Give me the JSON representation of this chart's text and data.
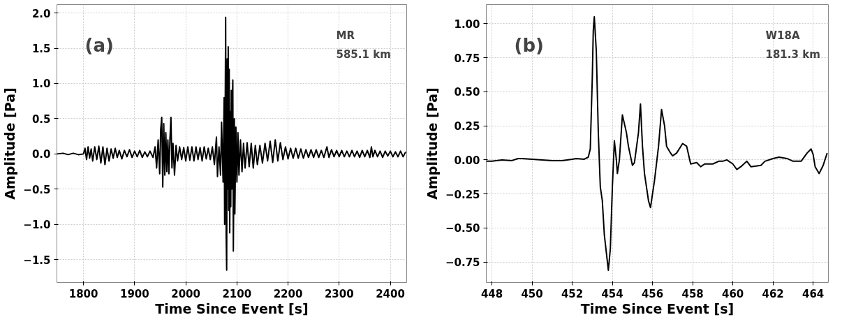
{
  "chart_data": [
    {
      "type": "line",
      "xlabel": "Time Since Event [s]",
      "ylabel": "Amplitude [Pa]",
      "annotations": [
        "(a)",
        "MR",
        "585.1 km"
      ],
      "grid": true,
      "xlim": [
        1748,
        2432
      ],
      "ylim": [
        -1.825,
        2.12
      ],
      "xticks": [
        1800,
        1900,
        2000,
        2100,
        2200,
        2300,
        2400
      ],
      "yticks": [
        {
          "value": -1.5,
          "label": "−1.5"
        },
        {
          "value": -1.0,
          "label": "−1.0"
        },
        {
          "value": -0.5,
          "label": "−0.5"
        },
        {
          "value": 0,
          "label": "0.0"
        },
        0.5,
        {
          "value": 1,
          "label": "1.0"
        },
        1.5,
        {
          "value": 2,
          "label": "2.0"
        }
      ],
      "series": [
        {
          "color": "#000000",
          "x": [
            1748,
            1760,
            1770,
            1780,
            1790,
            1800,
            1803,
            1806,
            1809,
            1812,
            1815,
            1818,
            1822,
            1826,
            1830,
            1834,
            1838,
            1842,
            1846,
            1850,
            1854,
            1858,
            1862,
            1866,
            1870,
            1875,
            1880,
            1885,
            1890,
            1895,
            1900,
            1905,
            1910,
            1915,
            1920,
            1925,
            1930,
            1936,
            1940,
            1943,
            1946,
            1949,
            1951,
            1953,
            1955,
            1957,
            1959,
            1961,
            1963,
            1965,
            1967,
            1969,
            1971,
            1973,
            1975,
            1978,
            1981,
            1984,
            1988,
            1992,
            1996,
            2000,
            2004,
            2008,
            2012,
            2016,
            2020,
            2024,
            2028,
            2032,
            2036,
            2040,
            2044,
            2048,
            2052,
            2056,
            2060,
            2062,
            2065,
            2068,
            2070,
            2073,
            2075,
            2076,
            2078,
            2079,
            2080,
            2081,
            2082,
            2083,
            2084,
            2085,
            2086,
            2087,
            2088,
            2089,
            2090,
            2091,
            2092,
            2093,
            2095,
            2096,
            2098,
            2100,
            2102,
            2104,
            2107,
            2110,
            2113,
            2116,
            2120,
            2124,
            2128,
            2132,
            2136,
            2140,
            2145,
            2150,
            2155,
            2160,
            2165,
            2170,
            2175,
            2180,
            2185,
            2190,
            2195,
            2200,
            2205,
            2210,
            2215,
            2220,
            2225,
            2230,
            2235,
            2240,
            2245,
            2250,
            2255,
            2260,
            2265,
            2270,
            2276,
            2280,
            2285,
            2290,
            2295,
            2300,
            2305,
            2310,
            2315,
            2320,
            2325,
            2330,
            2335,
            2340,
            2345,
            2350,
            2355,
            2360,
            2363,
            2366,
            2370,
            2375,
            2380,
            2385,
            2390,
            2395,
            2400,
            2405,
            2410,
            2415,
            2420,
            2425,
            2430
          ],
          "values": [
            0.0,
            0.01,
            -0.01,
            0.01,
            -0.01,
            0.0,
            0.08,
            -0.08,
            0.1,
            -0.06,
            0.07,
            -0.1,
            0.1,
            -0.08,
            0.11,
            -0.13,
            0.1,
            -0.15,
            0.08,
            -0.1,
            0.07,
            -0.06,
            0.08,
            -0.05,
            0.05,
            -0.07,
            0.05,
            -0.04,
            0.06,
            -0.05,
            0.04,
            -0.04,
            0.05,
            -0.05,
            0.03,
            -0.04,
            0.04,
            -0.05,
            0.1,
            -0.2,
            0.2,
            -0.28,
            0.35,
            0.52,
            -0.47,
            0.43,
            -0.3,
            0.3,
            -0.25,
            0.2,
            -0.28,
            0.2,
            0.52,
            -0.2,
            0.15,
            -0.3,
            0.12,
            -0.1,
            0.1,
            -0.08,
            0.09,
            -0.1,
            0.1,
            -0.09,
            0.1,
            -0.1,
            0.1,
            -0.08,
            0.09,
            -0.1,
            0.1,
            -0.07,
            0.08,
            -0.08,
            0.1,
            -0.15,
            0.24,
            -0.32,
            0.1,
            -0.3,
            0.45,
            -0.4,
            0.8,
            -1.0,
            1.94,
            -1.17,
            -1.65,
            1.35,
            -0.5,
            1.52,
            -0.8,
            1.2,
            -1.12,
            0.6,
            -0.75,
            0.9,
            -0.5,
            0.7,
            1.05,
            -1.38,
            0.5,
            -0.85,
            0.38,
            -0.4,
            0.3,
            -0.3,
            0.2,
            -0.25,
            0.15,
            -0.2,
            0.16,
            -0.18,
            0.15,
            -0.2,
            0.12,
            -0.15,
            0.12,
            -0.13,
            0.15,
            -0.1,
            0.18,
            -0.12,
            0.2,
            -0.1,
            0.16,
            -0.08,
            0.1,
            -0.07,
            0.08,
            -0.06,
            0.08,
            -0.06,
            0.07,
            -0.06,
            0.06,
            -0.05,
            0.06,
            -0.05,
            0.06,
            -0.05,
            0.05,
            -0.05,
            0.1,
            -0.05,
            0.06,
            -0.04,
            0.05,
            -0.04,
            0.05,
            -0.04,
            0.04,
            -0.04,
            0.05,
            -0.04,
            0.04,
            -0.05,
            0.05,
            -0.04,
            0.05,
            -0.05,
            0.1,
            -0.04,
            0.05,
            -0.04,
            0.04,
            -0.05,
            0.04,
            -0.03,
            0.04,
            -0.04,
            0.03,
            -0.04,
            0.04,
            -0.04,
            0.03
          ]
        }
      ]
    },
    {
      "type": "line",
      "xlabel": "Time Since Event [s]",
      "ylabel": "Amplitude [Pa]",
      "annotations": [
        "(b)",
        "W18A",
        "181.3 km"
      ],
      "grid": true,
      "xlim": [
        447.72,
        464.76
      ],
      "ylim": [
        -0.9,
        1.14
      ],
      "xticks": [
        448,
        450,
        452,
        454,
        456,
        458,
        460,
        462,
        464
      ],
      "yticks": [
        {
          "value": -0.75,
          "label": "−0.75"
        },
        {
          "value": -0.5,
          "label": "−0.50"
        },
        {
          "value": -0.25,
          "label": "−0.25"
        },
        {
          "value": 0,
          "label": "0.00"
        },
        0.25,
        {
          "value": 0.5,
          "label": "0.50"
        },
        0.75,
        {
          "value": 1,
          "label": "1.00"
        }
      ],
      "series": [
        {
          "color": "#000000",
          "x": [
            447.72,
            448,
            448.5,
            449,
            449.3,
            449.5,
            450,
            450.5,
            451,
            451.5,
            452,
            452.2,
            452.6,
            452.8,
            452.9,
            453.0,
            453.05,
            453.1,
            453.2,
            453.3,
            453.4,
            453.5,
            453.6,
            453.8,
            453.9,
            454.0,
            454.1,
            454.2,
            454.25,
            454.35,
            454.5,
            454.7,
            454.8,
            455.0,
            455.1,
            455.3,
            455.4,
            455.5,
            455.6,
            455.8,
            455.9,
            456.1,
            456.3,
            456.45,
            456.6,
            456.7,
            456.9,
            457.0,
            457.2,
            457.5,
            457.7,
            457.9,
            458.2,
            458.4,
            458.6,
            459.0,
            459.3,
            459.5,
            459.7,
            460.0,
            460.2,
            460.4,
            460.7,
            460.9,
            461.4,
            461.6,
            462,
            462.3,
            462.7,
            463,
            463.4,
            463.7,
            463.9,
            464.0,
            464.1,
            464.3,
            464.5,
            464.7
          ],
          "values": [
            -0.01,
            -0.01,
            0.0,
            -0.005,
            0.01,
            0.01,
            0.005,
            0.0,
            -0.005,
            -0.005,
            0.005,
            0.01,
            0.005,
            0.02,
            0.08,
            0.6,
            0.95,
            1.05,
            0.8,
            0.2,
            -0.2,
            -0.3,
            -0.55,
            -0.81,
            -0.65,
            -0.2,
            0.14,
            0.0,
            -0.1,
            0.0,
            0.33,
            0.2,
            0.1,
            -0.04,
            -0.02,
            0.2,
            0.41,
            0.1,
            -0.1,
            -0.3,
            -0.35,
            -0.15,
            0.1,
            0.37,
            0.25,
            0.1,
            0.05,
            0.03,
            0.05,
            0.12,
            0.1,
            -0.03,
            -0.02,
            -0.05,
            -0.03,
            -0.03,
            -0.01,
            -0.01,
            0.0,
            -0.03,
            -0.07,
            -0.05,
            -0.01,
            -0.05,
            -0.04,
            -0.01,
            0.01,
            0.02,
            0.01,
            -0.01,
            -0.01,
            0.05,
            0.08,
            0.04,
            -0.05,
            -0.1,
            -0.04,
            0.05
          ]
        }
      ]
    }
  ]
}
